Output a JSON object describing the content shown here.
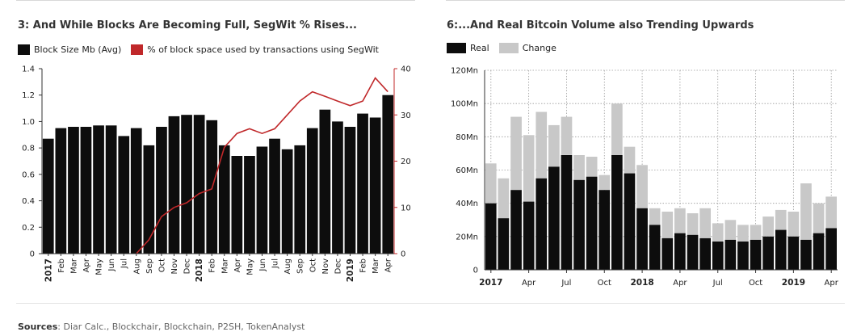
{
  "colors": {
    "bar": "#0d0d0d",
    "segwit_line": "#c0282a",
    "change": "#c8c8c8",
    "grid": "#9a9a9a"
  },
  "chart_data": [
    {
      "type": "bar",
      "title": "3: And While Blocks Are Becoming Full, SegWit % Rises...",
      "legend": [
        "Block Size Mb (Avg)",
        "% of block space used by transactions using SegWit"
      ],
      "categories": [
        "2017",
        "Feb",
        "Mar",
        "Apr",
        "May",
        "Jun",
        "Jul",
        "Aug",
        "Sep",
        "Oct",
        "Nov",
        "Dec",
        "2018",
        "Feb",
        "Mar",
        "Apr",
        "May",
        "Jun",
        "Jul",
        "Aug",
        "Sep",
        "Oct",
        "Nov",
        "Dec",
        "2019",
        "Feb",
        "Mar",
        "Apr"
      ],
      "bold_categories": [
        "2017",
        "2018",
        "2019"
      ],
      "series": [
        {
          "name": "Block Size Mb (Avg)",
          "type": "bar",
          "axis": "left",
          "values": [
            0.87,
            0.95,
            0.96,
            0.96,
            0.97,
            0.97,
            0.89,
            0.95,
            0.82,
            0.96,
            1.04,
            1.05,
            1.05,
            1.01,
            0.82,
            0.74,
            0.74,
            0.81,
            0.87,
            0.79,
            0.82,
            0.95,
            1.09,
            1.0,
            0.96,
            1.06,
            1.03,
            1.2
          ]
        },
        {
          "name": "% of block space used by transactions using SegWit",
          "type": "line",
          "axis": "right",
          "values": [
            null,
            null,
            null,
            null,
            null,
            null,
            null,
            0,
            3,
            8,
            10,
            11,
            13,
            14,
            23,
            26,
            27,
            26,
            27,
            30,
            33,
            35,
            34,
            33,
            32,
            33,
            38,
            35
          ]
        }
      ],
      "ylim_left": [
        0,
        1.4
      ],
      "yticks_left": [
        "0",
        "0.2",
        "0.4",
        "0.6",
        "0.8",
        "1.0",
        "1.2",
        "1.4"
      ],
      "ylim_right": [
        0,
        40
      ],
      "yticks_right": [
        "0",
        "10",
        "20",
        "30",
        "40"
      ],
      "grid": false
    },
    {
      "type": "bar",
      "stacked": true,
      "title": "6:...And Real Bitcoin Volume also Trending Upwards",
      "legend": [
        "Real",
        "Change"
      ],
      "x_ticks": [
        "2017",
        "Apr",
        "Jul",
        "Oct",
        "2018",
        "Apr",
        "Jul",
        "Oct",
        "2019",
        "Apr"
      ],
      "bold_ticks": [
        "2017",
        "2018",
        "2019"
      ],
      "series": [
        {
          "name": "Real",
          "values": [
            40,
            31,
            48,
            41,
            55,
            62,
            69,
            54,
            56,
            48,
            69,
            58,
            37,
            27,
            19,
            22,
            21,
            19,
            17,
            18,
            17,
            18,
            20,
            24,
            20,
            18,
            22,
            25
          ]
        },
        {
          "name": "Change",
          "values": [
            24,
            24,
            44,
            40,
            40,
            25,
            23,
            15,
            12,
            9,
            31,
            16,
            26,
            10,
            16,
            15,
            13,
            18,
            11,
            12,
            10,
            9,
            12,
            12,
            15,
            34,
            18,
            19
          ]
        }
      ],
      "ylim": [
        0,
        120
      ],
      "yticks": [
        "0",
        "20Mn",
        "40Mn",
        "60Mn",
        "80Mn",
        "100Mn",
        "120Mn"
      ],
      "grid": true
    }
  ],
  "footer": {
    "label": "Sources",
    "text": ": Diar Calc., Blockchair, Blockchain, P2SH, TokenAnalyst"
  }
}
